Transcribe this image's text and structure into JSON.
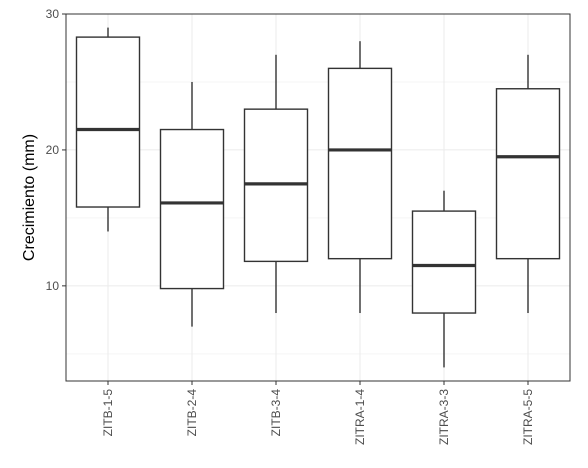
{
  "chart_data": {
    "type": "boxplot",
    "title": "",
    "xlabel": "",
    "ylabel": "Crecimiento (mm)",
    "ylim": [
      3,
      30
    ],
    "yticks": [
      10,
      20,
      30
    ],
    "grid": true,
    "categories": [
      "ZITB-1-5",
      "ZITB-2-4",
      "ZITB-3-4",
      "ZITRA-1-4",
      "ZITRA-3-3",
      "ZITRA-5-5"
    ],
    "boxes": [
      {
        "category": "ZITB-1-5",
        "whisker_low": 14,
        "q1": 15.8,
        "median": 21.5,
        "q3": 28.3,
        "whisker_high": 29
      },
      {
        "category": "ZITB-2-4",
        "whisker_low": 7,
        "q1": 9.8,
        "median": 16.1,
        "q3": 21.5,
        "whisker_high": 25
      },
      {
        "category": "ZITB-3-4",
        "whisker_low": 8,
        "q1": 11.8,
        "median": 17.5,
        "q3": 23.0,
        "whisker_high": 27
      },
      {
        "category": "ZITRA-1-4",
        "whisker_low": 8,
        "q1": 12.0,
        "median": 20.0,
        "q3": 26.0,
        "whisker_high": 28
      },
      {
        "category": "ZITRA-3-3",
        "whisker_low": 4,
        "q1": 8.0,
        "median": 11.5,
        "q3": 15.5,
        "whisker_high": 17
      },
      {
        "category": "ZITRA-5-5",
        "whisker_low": 8,
        "q1": 12.0,
        "median": 19.5,
        "q3": 24.5,
        "whisker_high": 27
      }
    ],
    "colors": {
      "box_fill": "#ffffff",
      "box_stroke": "#333333",
      "median": "#333333",
      "grid_major": "#ebebeb",
      "grid_minor": "#f5f5f5",
      "panel_border": "#333333",
      "tick_text": "#4d4d4d"
    }
  }
}
